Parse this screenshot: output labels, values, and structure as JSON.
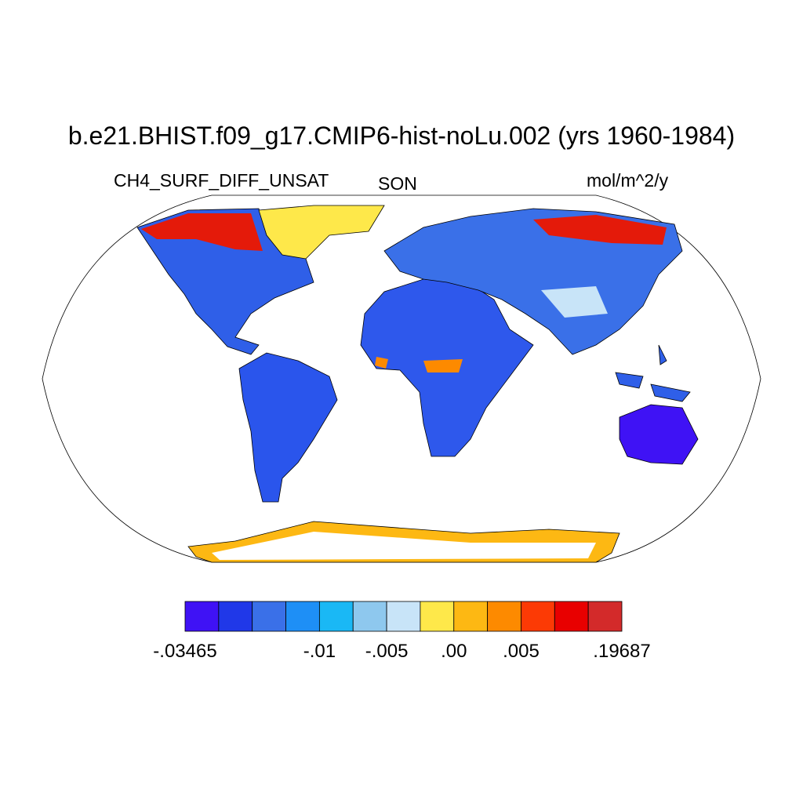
{
  "title": "b.e21.BHIST.f09_g17.CMIP6-hist-noLu.002 (yrs 1960-1984)",
  "left_string": "CH4_SURF_DIFF_UNSAT",
  "center_string": "SON",
  "right_string": "mol/m^2/y",
  "colorbar": {
    "colors": [
      "#3f12f5",
      "#2038e8",
      "#3a70e8",
      "#1e8ff6",
      "#1ab8f5",
      "#8ec8ee",
      "#c8e4f8",
      "#fee84a",
      "#fdb813",
      "#fd8a00",
      "#fc3a05",
      "#e80000",
      "#d32a2a"
    ],
    "labels": [
      "-.03465",
      null,
      null,
      null,
      "-.01",
      null,
      "-.005",
      null,
      ".00",
      null,
      ".005",
      null,
      null,
      ".19687"
    ]
  }
}
